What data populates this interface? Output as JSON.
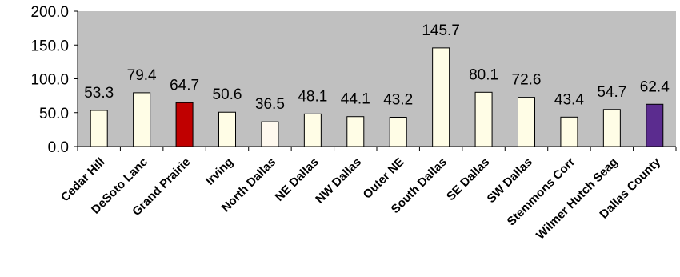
{
  "chart_data": {
    "type": "bar",
    "categories": [
      "Cedar Hill",
      "DeSoto Lanc",
      "Grand Prairie",
      "Irving",
      "North Dallas",
      "NE Dallas",
      "NW Dallas",
      "Outer NE",
      "South Dallas",
      "SE Dallas",
      "SW Dallas",
      "Stemmons Corr",
      "Wilmer Hutch Seag",
      "Dallas County"
    ],
    "values": [
      53.3,
      79.4,
      64.7,
      50.6,
      36.5,
      48.1,
      44.1,
      43.2,
      145.7,
      80.1,
      72.6,
      43.4,
      54.7,
      62.4
    ],
    "data_labels": [
      "53.3",
      "79.4",
      "64.7",
      "50.6",
      "36.5",
      "48.1",
      "44.1",
      "43.2",
      "145.7",
      "80.1",
      "72.6",
      "43.4",
      "54.7",
      "62.4"
    ],
    "bar_colors": [
      "#fffde6",
      "#fffde6",
      "#c00000",
      "#fffde6",
      "#fff9ef",
      "#fffde6",
      "#fffde6",
      "#fffde6",
      "#fffde6",
      "#fffde6",
      "#fffde6",
      "#fffde6",
      "#fffde6",
      "#5b2c8f"
    ],
    "ylim": [
      0,
      200
    ],
    "yticks": [
      "0.0",
      "50.0",
      "100.0",
      "150.0",
      "200.0"
    ],
    "ytick_values": [
      0,
      50,
      100,
      150,
      200
    ],
    "plot_background": "#c0c0c0",
    "title": "",
    "xlabel": "",
    "ylabel": "",
    "grid": false,
    "legend": "none"
  }
}
